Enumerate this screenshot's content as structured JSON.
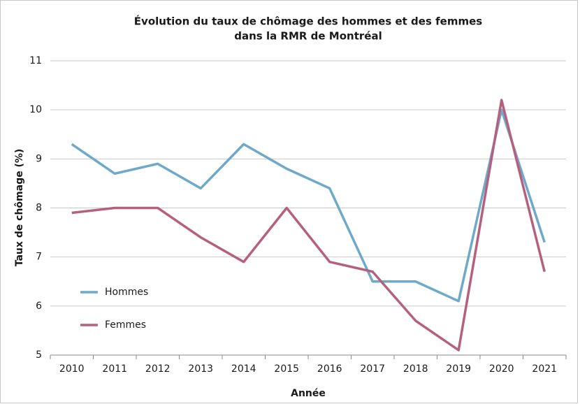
{
  "chart_data": {
    "type": "line",
    "title": [
      "Évolution du taux de chômage des hommes et des femmes",
      "dans la RMR de Montréal"
    ],
    "x_label": "Année",
    "y_label": "Taux de chômage (%)",
    "categories": [
      "2010",
      "2011",
      "2012",
      "2013",
      "2014",
      "2015",
      "2016",
      "2017",
      "2018",
      "2019",
      "2020",
      "2021"
    ],
    "series": [
      {
        "name": "Hommes",
        "color": "#6fa9c9",
        "values": [
          9.3,
          8.7,
          8.9,
          8.4,
          9.3,
          8.8,
          8.4,
          6.5,
          6.5,
          6.1,
          10.0,
          7.3
        ]
      },
      {
        "name": "Femmes",
        "color": "#b5607e",
        "values": [
          7.9,
          8.0,
          8.0,
          7.4,
          6.9,
          8.0,
          6.9,
          6.7,
          5.7,
          5.1,
          10.2,
          6.7
        ]
      }
    ],
    "ylim": [
      5,
      11
    ],
    "yticks": [
      5,
      6,
      7,
      8,
      9,
      10,
      11
    ],
    "grid": true,
    "legend": "left"
  }
}
